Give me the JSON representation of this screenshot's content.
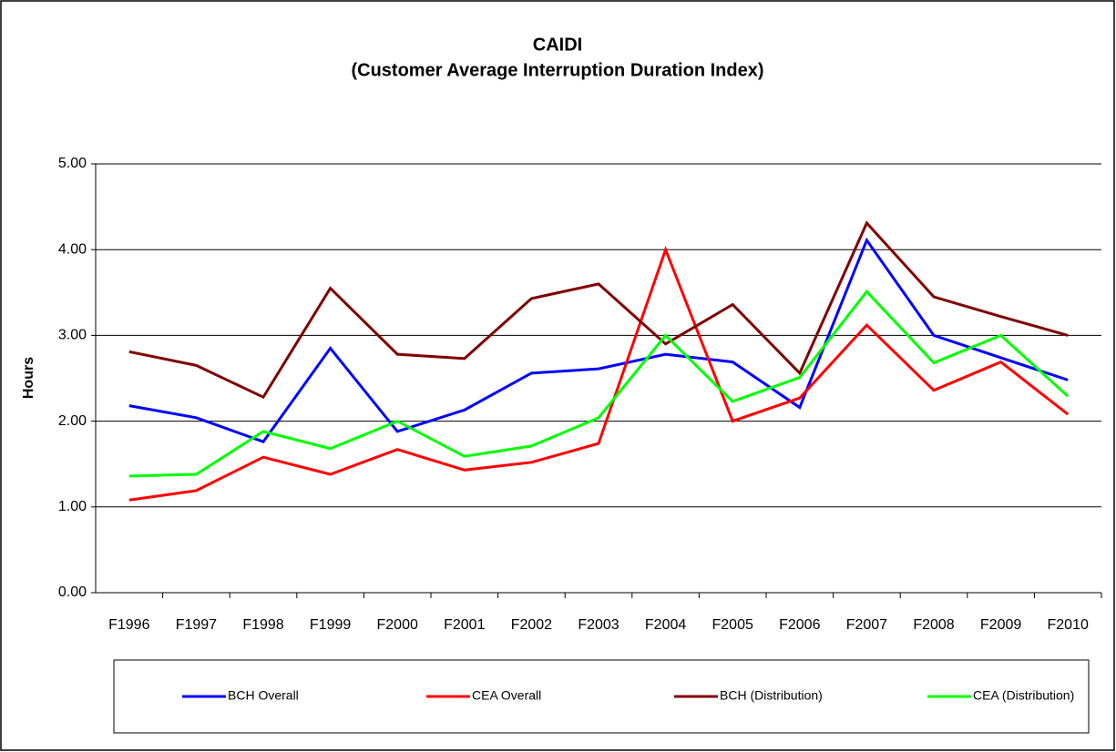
{
  "chart_data": {
    "type": "line",
    "title": "CAIDI",
    "subtitle": "(Customer Average Interruption Duration Index)",
    "y_label": "Hours",
    "categories": [
      "F1996",
      "F1997",
      "F1998",
      "F1999",
      "F2000",
      "F2001",
      "F2002",
      "F2003",
      "F2004",
      "F2005",
      "F2006",
      "F2007",
      "F2008",
      "F2009",
      "F2010"
    ],
    "series": [
      {
        "name": "BCH Overall",
        "color": "#0000ff",
        "values": [
          2.18,
          2.04,
          1.76,
          2.85,
          1.88,
          2.13,
          2.56,
          2.61,
          2.78,
          2.69,
          2.16,
          4.11,
          3.0,
          2.74,
          2.48
        ]
      },
      {
        "name": "CEA Overall",
        "color": "#ff0000",
        "values": [
          1.08,
          1.19,
          1.58,
          1.38,
          1.67,
          1.43,
          1.52,
          1.74,
          4.0,
          2.0,
          2.27,
          3.12,
          2.36,
          2.69,
          2.08
        ]
      },
      {
        "name": "BCH (Distribution)",
        "color": "#800000",
        "values": [
          2.81,
          2.65,
          2.28,
          3.55,
          2.78,
          2.73,
          3.43,
          3.6,
          2.9,
          3.36,
          2.56,
          4.31,
          3.45,
          3.22,
          3.0
        ]
      },
      {
        "name": "CEA (Distribution)",
        "color": "#00ff00",
        "values": [
          1.36,
          1.38,
          1.88,
          1.68,
          2.0,
          1.59,
          1.71,
          2.04,
          3.0,
          2.23,
          2.51,
          3.51,
          2.68,
          3.0,
          2.29
        ]
      }
    ],
    "ylim": [
      0,
      5
    ],
    "yticks": [
      {
        "value": 0,
        "label": "0.00"
      },
      {
        "value": 1,
        "label": "1.00"
      },
      {
        "value": 2,
        "label": "2.00"
      },
      {
        "value": 3,
        "label": "3.00"
      },
      {
        "value": 4,
        "label": "4.00"
      },
      {
        "value": 5,
        "label": "5.00"
      }
    ],
    "grid": true,
    "legend": "bottom"
  }
}
